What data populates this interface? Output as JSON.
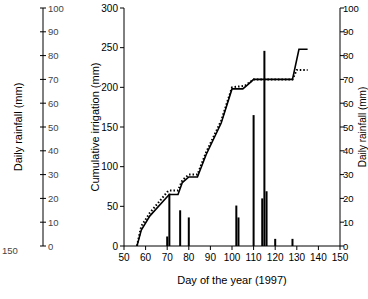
{
  "chart_data": {
    "type": "line",
    "xlabel": "Day of the year (1997)",
    "ylabel": "Cumulative irrigation (mm)",
    "y2label": "Daily rainfall (mm)",
    "annotations": [
      "150"
    ],
    "xlim": [
      50,
      150
    ],
    "xticks": [
      50,
      60,
      70,
      80,
      90,
      100,
      110,
      120,
      130,
      140,
      150
    ],
    "ylim": [
      0,
      300
    ],
    "yticks": [
      0,
      50,
      100,
      150,
      200,
      250,
      300
    ],
    "y2lim": [
      0,
      100
    ],
    "y2ticks": [
      0,
      10,
      20,
      30,
      40,
      50,
      60,
      70,
      80,
      90,
      100
    ],
    "grid": false,
    "series": [
      {
        "type": "line",
        "line_style": "solid",
        "color": "#000000",
        "x": [
          56,
          58,
          62,
          70,
          71,
          75,
          77,
          80,
          84,
          88,
          95,
          100,
          105,
          108,
          110,
          128,
          131,
          135
        ],
        "values": [
          0,
          20,
          38,
          62,
          65,
          65,
          80,
          87,
          87,
          115,
          155,
          198,
          198,
          205,
          210,
          210,
          248,
          248
        ]
      },
      {
        "type": "line",
        "line_style": "dotted",
        "color": "#000000",
        "x": [
          56,
          58,
          62,
          70,
          71,
          75,
          77,
          80,
          84,
          88,
          95,
          100,
          106,
          110,
          128,
          130,
          135
        ],
        "values": [
          0,
          25,
          42,
          68,
          70,
          70,
          83,
          90,
          90,
          118,
          158,
          200,
          202,
          210,
          210,
          222,
          222
        ]
      },
      {
        "type": "bar",
        "axis": "y2",
        "color": "#000000",
        "x": [
          70,
          71,
          76,
          80,
          102,
          103,
          110,
          114,
          115,
          116,
          120,
          128
        ],
        "values": [
          4,
          22,
          15,
          12,
          17,
          12,
          55,
          20,
          82,
          23,
          3,
          3
        ]
      }
    ]
  }
}
